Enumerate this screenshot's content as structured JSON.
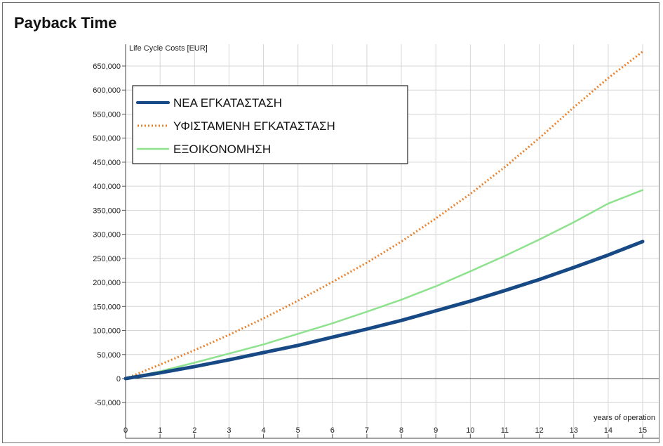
{
  "chart_data": {
    "type": "line",
    "title": "Payback Time",
    "xlabel": "years of operation",
    "ylabel": "Life Cycle Costs [EUR]",
    "xlim": [
      0,
      15
    ],
    "ylim": [
      -50000,
      650000
    ],
    "x_ticks": [
      "0",
      "1",
      "2",
      "3",
      "4",
      "5",
      "6",
      "7",
      "8",
      "9",
      "10",
      "11",
      "12",
      "13",
      "14",
      "15"
    ],
    "y_ticks": [
      "650,000",
      "600,000",
      "550,000",
      "500,000",
      "450,000",
      "400,000",
      "350,000",
      "300,000",
      "250,000",
      "200,000",
      "150,000",
      "100,000",
      "50,000",
      "0",
      "-50,000"
    ],
    "grid": true,
    "legend_position": "top-left",
    "x": [
      0,
      1,
      2,
      3,
      4,
      5,
      6,
      7,
      8,
      9,
      10,
      11,
      12,
      13,
      14,
      15
    ],
    "series": [
      {
        "name": "ΝΕΑ ΕΓΚΑΤΑΣΤΑΣΗ",
        "color": "#174a85",
        "style": "solid-thick",
        "values": [
          0,
          12000,
          25000,
          39000,
          54000,
          69000,
          86000,
          103000,
          121000,
          141000,
          161000,
          183000,
          206000,
          231000,
          257000,
          285000
        ]
      },
      {
        "name": "ΥΦΙΣΤΑΜΕΝΗ ΕΓΚΑΤΑΣΤΑΣΗ",
        "color": "#e8812c",
        "style": "dotted",
        "values": [
          0,
          29000,
          59000,
          91000,
          125000,
          162000,
          201000,
          241000,
          285000,
          333000,
          384000,
          440000,
          500000,
          564000,
          625000,
          680000
        ]
      },
      {
        "name": "ΕΞΟΙΚΟΝΟΜΗΣΗ",
        "color": "#8ee28e",
        "style": "solid",
        "values": [
          0,
          15000,
          33000,
          52000,
          71000,
          93000,
          115000,
          139000,
          164000,
          192000,
          223000,
          255000,
          289000,
          325000,
          364000,
          392000
        ]
      }
    ]
  }
}
